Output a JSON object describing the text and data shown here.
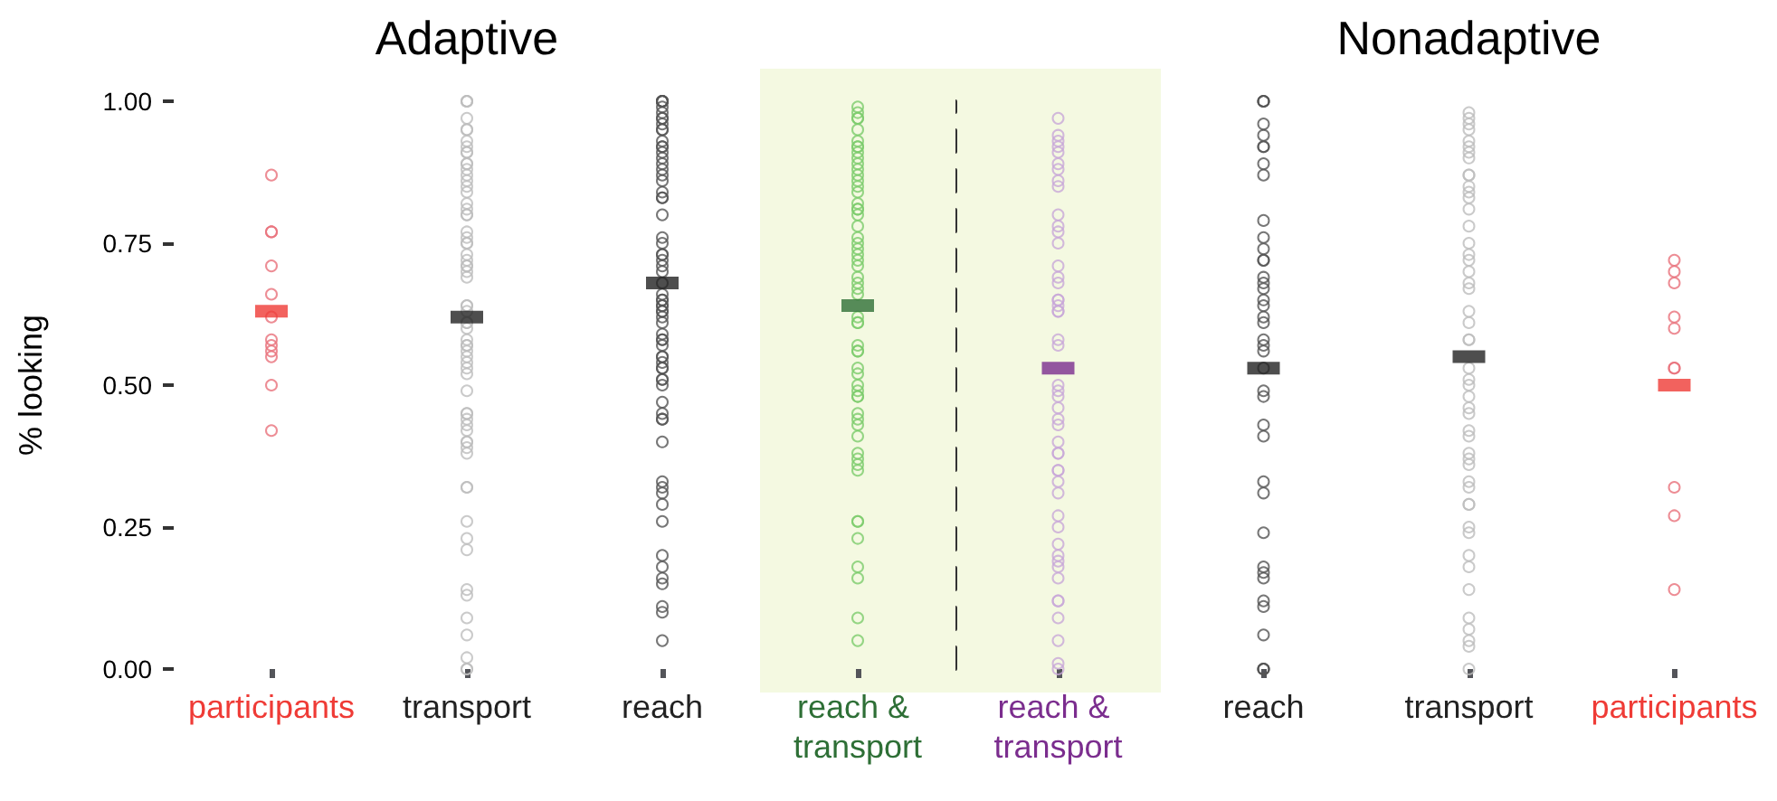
{
  "chart_data": [
    {
      "type": "scatter",
      "title": "Adaptive",
      "ylabel": "% looking",
      "categories": [
        "participants",
        "transport",
        "reach",
        "reach & transport"
      ],
      "ylim": [
        0,
        1
      ],
      "yticks": [
        {
          "value": 0,
          "label": "0.00"
        },
        {
          "value": 0.25,
          "label": "0.25"
        },
        {
          "value": 0.5,
          "label": "0.50"
        },
        {
          "value": 0.75,
          "label": "0.75"
        },
        {
          "value": 1,
          "label": "1.00"
        }
      ],
      "grid": false,
      "marker": "circle",
      "bands": [
        {
          "axis": "x",
          "from": "reach & transport",
          "to": "reach & transport",
          "color": "#f4f9e1"
        }
      ],
      "series": [
        {
          "color": "#e8707a",
          "x": [
            "participants",
            "participants",
            "participants",
            "participants",
            "participants",
            "participants",
            "participants",
            "participants",
            "participants",
            "participants",
            "participants",
            "participants"
          ],
          "values": [
            0.87,
            0.77,
            0.77,
            0.71,
            0.66,
            0.62,
            0.58,
            0.57,
            0.56,
            0.55,
            0.5,
            0.42
          ]
        },
        {
          "color": "#bdbdbd",
          "x": [
            "transport",
            "transport",
            "transport",
            "transport",
            "transport",
            "transport",
            "transport",
            "transport",
            "transport",
            "transport",
            "transport",
            "transport",
            "transport",
            "transport",
            "transport",
            "transport",
            "transport",
            "transport",
            "transport",
            "transport",
            "transport",
            "transport",
            "transport",
            "transport",
            "transport",
            "transport",
            "transport",
            "transport",
            "transport",
            "transport",
            "transport",
            "transport",
            "transport",
            "transport",
            "transport",
            "transport",
            "transport",
            "transport",
            "transport",
            "transport",
            "transport",
            "transport",
            "transport",
            "transport",
            "transport",
            "transport",
            "transport",
            "transport",
            "transport",
            "transport",
            "transport",
            "transport",
            "transport",
            "transport",
            "transport",
            "transport",
            "transport",
            "transport",
            "transport",
            "transport",
            "transport",
            "transport",
            "transport",
            "transport",
            "transport",
            "transport",
            "transport"
          ],
          "values": [
            1,
            1,
            1,
            0.97,
            0.95,
            0.95,
            0.93,
            0.92,
            0.91,
            0.91,
            0.89,
            0.89,
            0.88,
            0.87,
            0.86,
            0.85,
            0.84,
            0.82,
            0.81,
            0.8,
            0.8,
            0.77,
            0.76,
            0.75,
            0.75,
            0.73,
            0.72,
            0.71,
            0.71,
            0.7,
            0.69,
            0.64,
            0.64,
            0.63,
            0.61,
            0.61,
            0.6,
            0.58,
            0.57,
            0.57,
            0.56,
            0.55,
            0.54,
            0.53,
            0.52,
            0.49,
            0.45,
            0.45,
            0.44,
            0.43,
            0.42,
            0.4,
            0.4,
            0.39,
            0.38,
            0.32,
            0.32,
            0.26,
            0.23,
            0.21,
            0.14,
            0.13,
            0.09,
            0.06,
            0.02,
            0,
            0
          ]
        },
        {
          "color": "#555555",
          "x": [
            "reach",
            "reach",
            "reach",
            "reach",
            "reach",
            "reach",
            "reach",
            "reach",
            "reach",
            "reach",
            "reach",
            "reach",
            "reach",
            "reach",
            "reach",
            "reach",
            "reach",
            "reach",
            "reach",
            "reach",
            "reach",
            "reach",
            "reach",
            "reach",
            "reach",
            "reach",
            "reach",
            "reach",
            "reach",
            "reach",
            "reach",
            "reach",
            "reach",
            "reach",
            "reach",
            "reach",
            "reach",
            "reach",
            "reach",
            "reach",
            "reach",
            "reach",
            "reach",
            "reach",
            "reach",
            "reach",
            "reach",
            "reach",
            "reach",
            "reach",
            "reach",
            "reach",
            "reach",
            "reach",
            "reach",
            "reach",
            "reach",
            "reach",
            "reach",
            "reach",
            "reach",
            "reach",
            "reach",
            "reach",
            "reach",
            "reach",
            "reach",
            "reach",
            "reach",
            "reach",
            "reach"
          ],
          "values": [
            1,
            1,
            1,
            1,
            1,
            0.99,
            0.98,
            0.97,
            0.97,
            0.96,
            0.95,
            0.95,
            0.93,
            0.92,
            0.92,
            0.91,
            0.9,
            0.89,
            0.88,
            0.87,
            0.86,
            0.84,
            0.83,
            0.83,
            0.8,
            0.76,
            0.75,
            0.73,
            0.73,
            0.72,
            0.71,
            0.7,
            0.68,
            0.66,
            0.65,
            0.65,
            0.64,
            0.64,
            0.63,
            0.63,
            0.62,
            0.61,
            0.59,
            0.58,
            0.58,
            0.57,
            0.55,
            0.55,
            0.54,
            0.53,
            0.53,
            0.51,
            0.51,
            0.5,
            0.47,
            0.45,
            0.44,
            0.44,
            0.4,
            0.33,
            0.32,
            0.31,
            0.29,
            0.26,
            0.2,
            0.18,
            0.16,
            0.15,
            0.11,
            0.1,
            0.05
          ]
        },
        {
          "color": "#7ccc6c",
          "x": [
            "reach & transport",
            "reach & transport",
            "reach & transport",
            "reach & transport",
            "reach & transport",
            "reach & transport",
            "reach & transport",
            "reach & transport",
            "reach & transport",
            "reach & transport",
            "reach & transport",
            "reach & transport",
            "reach & transport",
            "reach & transport",
            "reach & transport",
            "reach & transport",
            "reach & transport",
            "reach & transport",
            "reach & transport",
            "reach & transport",
            "reach & transport",
            "reach & transport",
            "reach & transport",
            "reach & transport",
            "reach & transport",
            "reach & transport",
            "reach & transport",
            "reach & transport",
            "reach & transport",
            "reach & transport",
            "reach & transport",
            "reach & transport",
            "reach & transport",
            "reach & transport",
            "reach & transport",
            "reach & transport",
            "reach & transport",
            "reach & transport",
            "reach & transport",
            "reach & transport",
            "reach & transport",
            "reach & transport",
            "reach & transport",
            "reach & transport",
            "reach & transport",
            "reach & transport",
            "reach & transport",
            "reach & transport",
            "reach & transport",
            "reach & transport",
            "reach & transport",
            "reach & transport",
            "reach & transport",
            "reach & transport",
            "reach & transport",
            "reach & transport",
            "reach & transport",
            "reach & transport"
          ],
          "values": [
            0.99,
            0.98,
            0.97,
            0.97,
            0.95,
            0.93,
            0.92,
            0.92,
            0.91,
            0.9,
            0.89,
            0.88,
            0.87,
            0.86,
            0.85,
            0.84,
            0.82,
            0.81,
            0.81,
            0.8,
            0.78,
            0.76,
            0.75,
            0.74,
            0.73,
            0.72,
            0.71,
            0.69,
            0.68,
            0.67,
            0.66,
            0.62,
            0.61,
            0.61,
            0.57,
            0.56,
            0.56,
            0.53,
            0.52,
            0.5,
            0.49,
            0.48,
            0.48,
            0.45,
            0.44,
            0.43,
            0.41,
            0.38,
            0.37,
            0.36,
            0.35,
            0.26,
            0.26,
            0.23,
            0.18,
            0.16,
            0.09,
            0.05
          ]
        },
        {
          "marker": "square",
          "x": [
            "participants",
            "transport",
            "reach",
            "reach & transport"
          ],
          "colors": [
            "#ef3b36",
            "#222222",
            "#222222",
            "#2e6f36"
          ],
          "values": [
            0.63,
            0.62,
            0.68,
            0.64
          ]
        }
      ]
    },
    {
      "type": "scatter",
      "title": "Nonadaptive",
      "tick_labels": "x",
      "categories": [
        "reach & transport",
        "reach",
        "transport",
        "participants"
      ],
      "ylim": [
        0,
        1
      ],
      "grid": false,
      "marker": "circle",
      "bands": [
        {
          "axis": "x",
          "from": "reach & transport",
          "to": "reach & transport",
          "color": "#f4f9e1"
        }
      ],
      "series": [
        {
          "color": "#c8a8d8",
          "x": [
            "reach & transport",
            "reach & transport",
            "reach & transport",
            "reach & transport",
            "reach & transport",
            "reach & transport",
            "reach & transport",
            "reach & transport",
            "reach & transport",
            "reach & transport",
            "reach & transport",
            "reach & transport",
            "reach & transport",
            "reach & transport",
            "reach & transport",
            "reach & transport",
            "reach & transport",
            "reach & transport",
            "reach & transport",
            "reach & transport",
            "reach & transport",
            "reach & transport",
            "reach & transport",
            "reach & transport",
            "reach & transport",
            "reach & transport",
            "reach & transport",
            "reach & transport",
            "reach & transport",
            "reach & transport",
            "reach & transport",
            "reach & transport",
            "reach & transport",
            "reach & transport",
            "reach & transport",
            "reach & transport",
            "reach & transport",
            "reach & transport",
            "reach & transport",
            "reach & transport",
            "reach & transport",
            "reach & transport",
            "reach & transport",
            "reach & transport",
            "reach & transport",
            "reach & transport",
            "reach & transport",
            "reach & transport",
            "reach & transport"
          ],
          "values": [
            0.97,
            0.94,
            0.93,
            0.92,
            0.91,
            0.89,
            0.88,
            0.86,
            0.85,
            0.8,
            0.78,
            0.77,
            0.75,
            0.71,
            0.69,
            0.68,
            0.65,
            0.65,
            0.64,
            0.63,
            0.63,
            0.58,
            0.57,
            0.5,
            0.49,
            0.48,
            0.46,
            0.44,
            0.43,
            0.4,
            0.38,
            0.38,
            0.35,
            0.35,
            0.33,
            0.31,
            0.27,
            0.25,
            0.22,
            0.2,
            0.19,
            0.18,
            0.16,
            0.12,
            0.12,
            0.09,
            0.05,
            0.01,
            0
          ]
        },
        {
          "color": "#555555",
          "x": [
            "reach",
            "reach",
            "reach",
            "reach",
            "reach",
            "reach",
            "reach",
            "reach",
            "reach",
            "reach",
            "reach",
            "reach",
            "reach",
            "reach",
            "reach",
            "reach",
            "reach",
            "reach",
            "reach",
            "reach",
            "reach",
            "reach",
            "reach",
            "reach",
            "reach",
            "reach",
            "reach",
            "reach",
            "reach",
            "reach",
            "reach",
            "reach",
            "reach",
            "reach",
            "reach",
            "reach",
            "reach",
            "reach",
            "reach",
            "reach",
            "reach"
          ],
          "values": [
            1,
            1,
            1,
            0.96,
            0.94,
            0.92,
            0.92,
            0.89,
            0.87,
            0.79,
            0.76,
            0.74,
            0.72,
            0.72,
            0.69,
            0.68,
            0.67,
            0.65,
            0.64,
            0.62,
            0.61,
            0.58,
            0.57,
            0.56,
            0.53,
            0.49,
            0.48,
            0.43,
            0.41,
            0.33,
            0.31,
            0.24,
            0.18,
            0.17,
            0.16,
            0.12,
            0.11,
            0.06,
            0,
            0,
            0
          ]
        },
        {
          "color": "#bdbdbd",
          "x": [
            "transport",
            "transport",
            "transport",
            "transport",
            "transport",
            "transport",
            "transport",
            "transport",
            "transport",
            "transport",
            "transport",
            "transport",
            "transport",
            "transport",
            "transport",
            "transport",
            "transport",
            "transport",
            "transport",
            "transport",
            "transport",
            "transport",
            "transport",
            "transport",
            "transport",
            "transport",
            "transport",
            "transport",
            "transport",
            "transport",
            "transport",
            "transport",
            "transport",
            "transport",
            "transport",
            "transport",
            "transport",
            "transport",
            "transport",
            "transport",
            "transport",
            "transport",
            "transport",
            "transport",
            "transport",
            "transport",
            "transport",
            "transport",
            "transport",
            "transport"
          ],
          "values": [
            0.98,
            0.97,
            0.96,
            0.95,
            0.93,
            0.92,
            0.91,
            0.9,
            0.87,
            0.87,
            0.85,
            0.84,
            0.83,
            0.81,
            0.78,
            0.75,
            0.73,
            0.72,
            0.7,
            0.68,
            0.67,
            0.63,
            0.61,
            0.58,
            0.58,
            0.53,
            0.51,
            0.5,
            0.48,
            0.46,
            0.45,
            0.42,
            0.41,
            0.38,
            0.37,
            0.36,
            0.33,
            0.32,
            0.29,
            0.29,
            0.25,
            0.24,
            0.2,
            0.18,
            0.14,
            0.09,
            0.07,
            0.05,
            0.04,
            0
          ]
        },
        {
          "color": "#e8707a",
          "x": [
            "participants",
            "participants",
            "participants",
            "participants",
            "participants",
            "participants",
            "participants",
            "participants",
            "participants",
            "participants"
          ],
          "values": [
            0.72,
            0.7,
            0.68,
            0.62,
            0.6,
            0.53,
            0.53,
            0.32,
            0.27,
            0.14
          ]
        },
        {
          "marker": "square",
          "x": [
            "reach & transport",
            "reach",
            "transport",
            "participants"
          ],
          "colors": [
            "#7b2d8e",
            "#222222",
            "#222222",
            "#ef3b36"
          ],
          "values": [
            0.53,
            0.53,
            0.55,
            0.5
          ]
        }
      ]
    }
  ]
}
